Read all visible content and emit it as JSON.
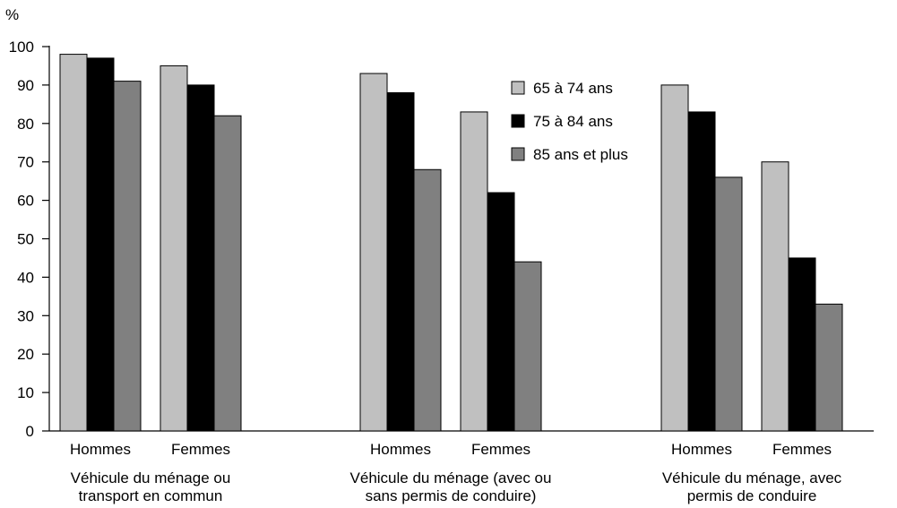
{
  "chart_data": {
    "type": "bar",
    "unit_label": "%",
    "ylim": [
      0,
      100
    ],
    "yticks": [
      0,
      10,
      20,
      30,
      40,
      50,
      60,
      70,
      80,
      90,
      100
    ],
    "groups": [
      {
        "label": "Véhicule du ménage ou transport en commun",
        "label_lines": [
          "Véhicule du ménage ou",
          "transport en commun"
        ],
        "categories": [
          {
            "label": "Hommes",
            "values": [
              98,
              97,
              91
            ]
          },
          {
            "label": "Femmes",
            "values": [
              95,
              90,
              82
            ]
          }
        ]
      },
      {
        "label": "Véhicule du ménage (avec ou sans permis de conduire)",
        "label_lines": [
          "Véhicule du ménage (avec ou",
          "sans permis de conduire)"
        ],
        "categories": [
          {
            "label": "Hommes",
            "values": [
              93,
              88,
              68
            ]
          },
          {
            "label": "Femmes",
            "values": [
              83,
              62,
              44
            ]
          }
        ]
      },
      {
        "label": "Véhicule du ménage, avec permis de conduire",
        "label_lines": [
          "Véhicule du ménage, avec",
          "permis de conduire"
        ],
        "categories": [
          {
            "label": "Hommes",
            "values": [
              90,
              83,
              66
            ]
          },
          {
            "label": "Femmes",
            "values": [
              70,
              45,
              33
            ]
          }
        ]
      }
    ],
    "series": [
      {
        "name": "65 à 74 ans",
        "color": "#c0c0c0"
      },
      {
        "name": "75 à 84 ans",
        "color": "#000000"
      },
      {
        "name": "85 ans et plus",
        "color": "#808080"
      }
    ],
    "legend_position": "top-center"
  }
}
